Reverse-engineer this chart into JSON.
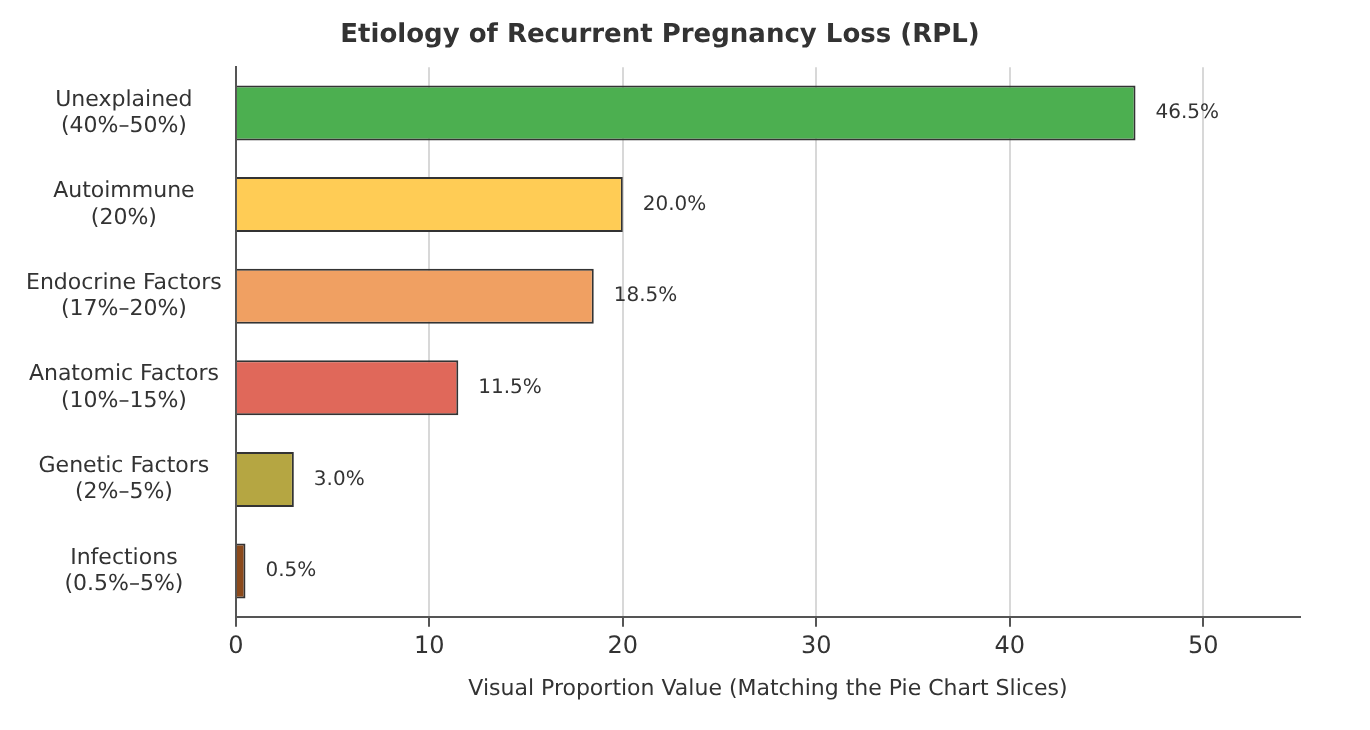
{
  "chart_data": {
    "type": "bar",
    "orientation": "horizontal",
    "title": "Etiology of Recurrent Pregnancy Loss (RPL)",
    "xlabel": "Visual Proportion Value (Matching the Pie Chart Slices)",
    "categories": [
      "Unexplained\n(40%–50%)",
      "Autoimmune\n(20%)",
      "Endocrine Factors\n(17%–20%)",
      "Anatomic Factors\n(10%–15%)",
      "Genetic Factors\n(2%–5%)",
      "Infections\n(0.5%–5%)"
    ],
    "values": [
      46.5,
      20.0,
      18.5,
      11.5,
      3.0,
      0.5
    ],
    "value_labels": [
      "46.5%",
      "20.0%",
      "18.5%",
      "11.5%",
      "3.0%",
      "0.5%"
    ],
    "colors": [
      "#4caf50",
      "#ffcc55",
      "#f0a062",
      "#e0685a",
      "#b5a642",
      "#8b4a1c"
    ],
    "xlim": [
      0,
      55
    ],
    "xticks": [
      0,
      10,
      20,
      30,
      40,
      50
    ],
    "grid": "x",
    "legend": false
  }
}
